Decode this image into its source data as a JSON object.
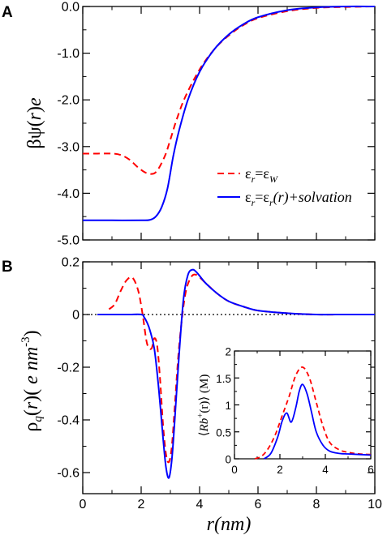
{
  "chart_data": [
    {
      "panel": "A",
      "type": "line",
      "ylabel": "βψ(r)e",
      "xlim": [
        0,
        10
      ],
      "ylim": [
        -5.0,
        0.0
      ],
      "yticks": [
        "-5.0",
        "-4.0",
        "-3.0",
        "-2.0",
        "-1.0",
        "0.0"
      ],
      "legend_position": "lower-right",
      "series": [
        {
          "name": "εr=εW",
          "color": "#ff0000",
          "style": "dashed",
          "x": [
            0,
            0.5,
            1.0,
            1.3,
            1.6,
            1.9,
            2.2,
            2.5,
            2.8,
            3.0,
            3.2,
            3.5,
            4.0,
            4.5,
            5.0,
            5.5,
            6.0,
            7.0,
            8.0,
            9.0,
            10.0
          ],
          "y": [
            -3.15,
            -3.15,
            -3.15,
            -3.18,
            -3.28,
            -3.45,
            -3.57,
            -3.55,
            -3.22,
            -2.85,
            -2.45,
            -1.95,
            -1.35,
            -0.92,
            -0.62,
            -0.4,
            -0.25,
            -0.1,
            -0.03,
            -0.01,
            0.0
          ]
        },
        {
          "name": "εr=εr(r)+solvation",
          "color": "#0000ff",
          "style": "solid",
          "x": [
            0,
            1.0,
            2.0,
            2.3,
            2.5,
            2.7,
            2.9,
            3.1,
            3.3,
            3.6,
            4.0,
            4.5,
            5.0,
            5.5,
            6.0,
            7.0,
            8.0,
            9.0,
            10.0
          ],
          "y": [
            -4.58,
            -4.58,
            -4.58,
            -4.57,
            -4.5,
            -4.3,
            -3.9,
            -3.2,
            -2.65,
            -2.0,
            -1.4,
            -0.92,
            -0.6,
            -0.38,
            -0.23,
            -0.08,
            -0.02,
            0.0,
            0.0
          ]
        }
      ],
      "legend": [
        {
          "prefix": "ε",
          "sub1": "r",
          "mid": "=ε",
          "sub2": "W",
          "suffix": ""
        },
        {
          "prefix": "ε",
          "sub1": "r",
          "mid": "=ε",
          "sub2": "r",
          "suffix": "(r)+solvation"
        }
      ]
    },
    {
      "panel": "B",
      "type": "line",
      "ylabel": "ρq(r)( e nm-3)",
      "xlabel": "r(nm)",
      "xlim": [
        0,
        10
      ],
      "ylim": [
        -0.68,
        0.2
      ],
      "xticks": [
        "0",
        "2",
        "4",
        "6",
        "8",
        "10"
      ],
      "yticks": [
        "-0.6",
        "-0.4",
        "-0.2",
        "0",
        "0.2"
      ],
      "zero_line": "dotted",
      "series": [
        {
          "name": "εr=εW",
          "color": "#ff0000",
          "style": "dashed",
          "x": [
            0.9,
            1.1,
            1.3,
            1.5,
            1.7,
            1.9,
            2.05,
            2.2,
            2.35,
            2.45,
            2.55,
            2.65,
            2.75,
            2.85,
            2.95,
            3.05,
            3.15,
            3.3,
            3.5,
            3.7,
            3.9,
            4.2,
            4.6,
            5.0,
            5.5,
            6.0,
            7.0,
            8.0,
            9.0,
            10.0
          ],
          "y": [
            0.02,
            0.04,
            0.09,
            0.13,
            0.14,
            0.09,
            0.0,
            -0.11,
            -0.13,
            -0.09,
            -0.12,
            -0.25,
            -0.42,
            -0.53,
            -0.56,
            -0.5,
            -0.35,
            -0.12,
            0.07,
            0.14,
            0.15,
            0.12,
            0.08,
            0.05,
            0.03,
            0.015,
            0.005,
            0.0,
            0.0,
            0.0
          ]
        },
        {
          "name": "εr=εr(r)+solvation",
          "color": "#0000ff",
          "style": "solid",
          "x": [
            0.5,
            1.5,
            2.0,
            2.1,
            2.2,
            2.3,
            2.45,
            2.6,
            2.75,
            2.85,
            2.95,
            3.05,
            3.15,
            3.3,
            3.45,
            3.6,
            3.75,
            3.9,
            4.2,
            4.6,
            5.0,
            5.5,
            6.0,
            7.0,
            8.0,
            9.0,
            10.0
          ],
          "y": [
            0.0,
            0.0,
            0.0,
            -0.01,
            -0.03,
            -0.06,
            -0.13,
            -0.28,
            -0.47,
            -0.58,
            -0.62,
            -0.55,
            -0.4,
            -0.15,
            0.06,
            0.15,
            0.17,
            0.16,
            0.12,
            0.08,
            0.05,
            0.03,
            0.015,
            0.005,
            0.0,
            0.0,
            0.0
          ]
        }
      ]
    },
    {
      "panel": "B-inset",
      "type": "line",
      "ylabel": "⟨Rb+(r)⟩ (M)",
      "xlim": [
        0,
        6
      ],
      "ylim": [
        0,
        2
      ],
      "xticks": [
        "0",
        "2",
        "4",
        "6"
      ],
      "yticks": [
        "0",
        "0.5",
        "1",
        "1.5",
        "2"
      ],
      "series": [
        {
          "name": "εr=εW",
          "color": "#ff0000",
          "style": "dashed",
          "x": [
            0.9,
            1.2,
            1.5,
            1.8,
            2.1,
            2.4,
            2.7,
            3.0,
            3.3,
            3.6,
            3.9,
            4.2,
            4.6,
            5.0,
            5.5,
            6.0
          ],
          "y": [
            0.0,
            0.05,
            0.2,
            0.45,
            0.8,
            1.15,
            1.55,
            1.7,
            1.5,
            1.05,
            0.6,
            0.3,
            0.17,
            0.12,
            0.09,
            0.08
          ]
        },
        {
          "name": "εr=εr(r)+solvation",
          "color": "#0000ff",
          "style": "solid",
          "x": [
            1.3,
            1.6,
            1.9,
            2.1,
            2.3,
            2.5,
            2.7,
            2.85,
            3.0,
            3.2,
            3.4,
            3.6,
            3.9,
            4.2,
            4.6,
            5.0,
            5.5,
            6.0
          ],
          "y": [
            0.0,
            0.1,
            0.4,
            0.7,
            0.85,
            0.68,
            0.95,
            1.25,
            1.38,
            1.2,
            0.85,
            0.5,
            0.25,
            0.14,
            0.1,
            0.09,
            0.08,
            0.07
          ]
        }
      ]
    }
  ]
}
